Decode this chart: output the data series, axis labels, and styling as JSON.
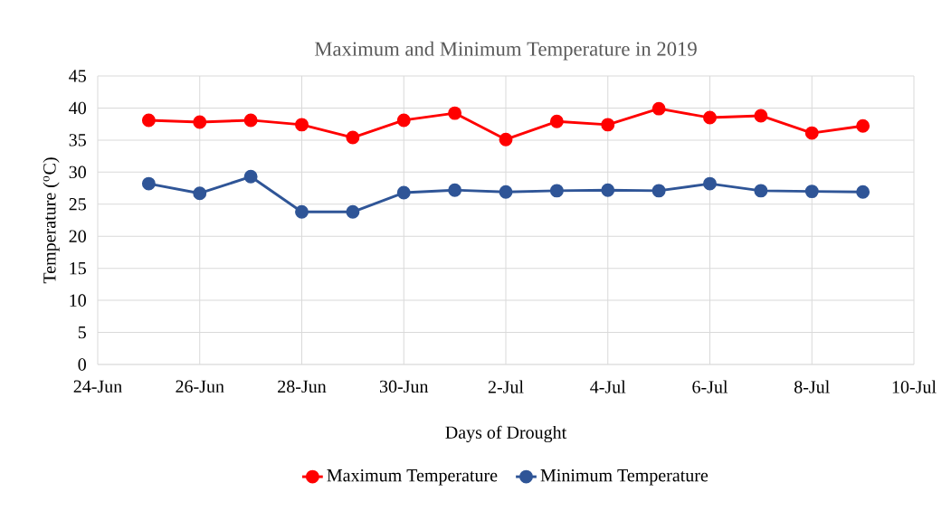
{
  "chart_data": {
    "type": "line",
    "title": "Maximum and Minimum Temperature in 2019",
    "xlabel": "Days of Drought",
    "ylabel": "Temperature ($^{o}$C)",
    "x": [
      "2019-06-25",
      "2019-06-26",
      "2019-06-27",
      "2019-06-28",
      "2019-06-29",
      "2019-06-30",
      "2019-07-01",
      "2019-07-02",
      "2019-07-03",
      "2019-07-04",
      "2019-07-05",
      "2019-07-06",
      "2019-07-07",
      "2019-07-08",
      "2019-07-09"
    ],
    "series": [
      {
        "name": "Maximum Temperature",
        "color": "#ff0000",
        "values": [
          38.1,
          37.8,
          38.1,
          37.4,
          35.4,
          38.1,
          39.2,
          35.1,
          37.9,
          37.4,
          39.9,
          38.5,
          38.8,
          36.1,
          37.2
        ]
      },
      {
        "name": "Minimum Temperature",
        "color": "#2f5597",
        "values": [
          28.2,
          26.7,
          29.3,
          23.8,
          23.8,
          26.8,
          27.2,
          26.9,
          27.1,
          27.2,
          27.1,
          28.2,
          27.1,
          27.0,
          26.9
        ]
      }
    ],
    "xlim": [
      "2019-06-24",
      "2019-07-10"
    ],
    "xticks": [
      {
        "value": "2019-06-24",
        "label": "24-Jun"
      },
      {
        "value": "2019-06-26",
        "label": "26-Jun"
      },
      {
        "value": "2019-06-28",
        "label": "28-Jun"
      },
      {
        "value": "2019-06-30",
        "label": "30-Jun"
      },
      {
        "value": "2019-07-02",
        "label": "2-Jul"
      },
      {
        "value": "2019-07-04",
        "label": "4-Jul"
      },
      {
        "value": "2019-07-06",
        "label": "6-Jul"
      },
      {
        "value": "2019-07-08",
        "label": "8-Jul"
      },
      {
        "value": "2019-07-10",
        "label": "10-Jul"
      }
    ],
    "ylim": [
      0,
      45
    ],
    "yticks": [
      0,
      5,
      10,
      15,
      20,
      25,
      30,
      35,
      40,
      45
    ],
    "grid": true,
    "legend": "bottom",
    "marker": "circle"
  }
}
